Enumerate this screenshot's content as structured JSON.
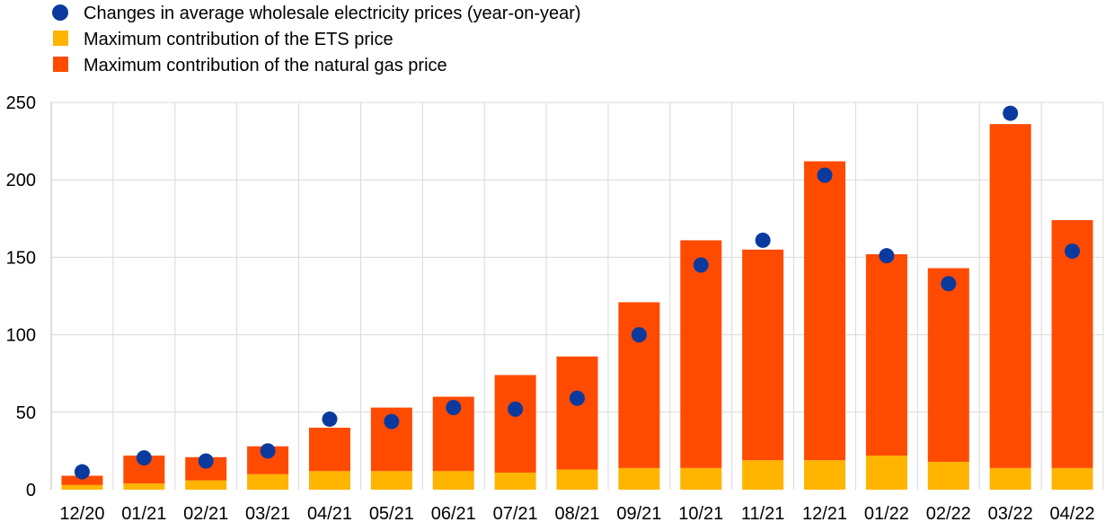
{
  "colors": {
    "dots": "#0a3a9e",
    "ets": "#ffb400",
    "gas": "#ff4b00",
    "grid": "#d9d9d9"
  },
  "legend": [
    {
      "key": "dots",
      "marker": "circle",
      "label": "Changes in average wholesale electricity prices (year-on-year)"
    },
    {
      "key": "ets",
      "marker": "square",
      "label": "Maximum contribution of the ETS price"
    },
    {
      "key": "gas",
      "marker": "square",
      "label": "Maximum contribution of the natural gas price"
    }
  ],
  "chart_data": {
    "type": "bar",
    "stacked": true,
    "categories": [
      "12/20",
      "01/21",
      "02/21",
      "03/21",
      "04/21",
      "05/21",
      "06/21",
      "07/21",
      "08/21",
      "09/21",
      "10/21",
      "11/21",
      "12/21",
      "01/22",
      "02/22",
      "03/22",
      "04/22"
    ],
    "series": [
      {
        "name": "Maximum contribution of the ETS price",
        "key": "ets",
        "kind": "bar",
        "values": [
          3,
          4,
          6,
          10,
          12,
          12,
          12,
          11,
          13,
          14,
          14,
          19,
          19,
          22,
          18,
          14,
          14
        ]
      },
      {
        "name": "Maximum contribution of the natural gas price",
        "key": "gas",
        "kind": "bar",
        "values": [
          6,
          18,
          15,
          18,
          28,
          41,
          48,
          63,
          73,
          107,
          147,
          136,
          193,
          130,
          125,
          222,
          160
        ]
      },
      {
        "name": "Changes in average wholesale electricity prices (year-on-year)",
        "key": "dots",
        "kind": "scatter",
        "values": [
          11.5,
          20.5,
          18.5,
          25,
          45.5,
          44,
          53,
          52,
          59,
          100,
          145,
          161,
          203,
          151,
          133,
          243,
          154
        ]
      }
    ],
    "ylim": [
      0,
      250
    ],
    "yticks": [
      0,
      50,
      100,
      150,
      200,
      250
    ],
    "xlabel": "",
    "ylabel": "",
    "grid": true,
    "legend_position": "top-left"
  }
}
